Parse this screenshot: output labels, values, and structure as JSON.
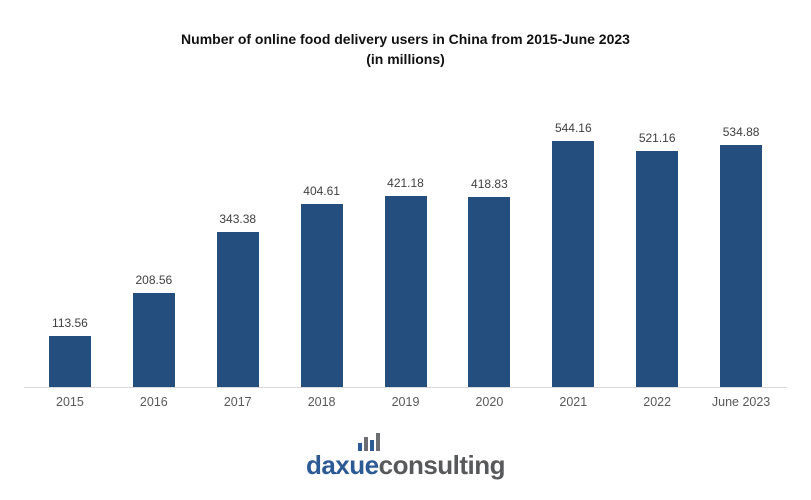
{
  "chart_data": {
    "type": "bar",
    "title": "Number of online food delivery users in China from 2015-June 2023",
    "subtitle": "(in millions)",
    "categories": [
      "2015",
      "2016",
      "2017",
      "2018",
      "2019",
      "2020",
      "2021",
      "2022",
      "June 2023"
    ],
    "values": [
      113.56,
      208.56,
      343.38,
      404.61,
      421.18,
      418.83,
      544.16,
      521.16,
      534.88
    ],
    "value_labels": [
      "113.56",
      "208.56",
      "343.38",
      "404.61",
      "421.18",
      "418.83",
      "544.16",
      "521.16",
      "534.88"
    ],
    "xlabel": "",
    "ylabel": "",
    "ylim": [
      0,
      600
    ],
    "grid": false,
    "legend": "none",
    "value_labels_position": "above-bars"
  },
  "colors": {
    "bar": "#234e7e",
    "value_label": "#3f3f3f",
    "axis_label": "#595959",
    "axis_line": "#d9d9d9",
    "title": "#111111",
    "logo_blue": "#2b5a94",
    "logo_gray": "#58595b",
    "icon_gray": "#6d6e71"
  },
  "logo": {
    "icon": "bar-chart-icon",
    "primary_text": "daxue",
    "secondary_text": "consulting"
  }
}
